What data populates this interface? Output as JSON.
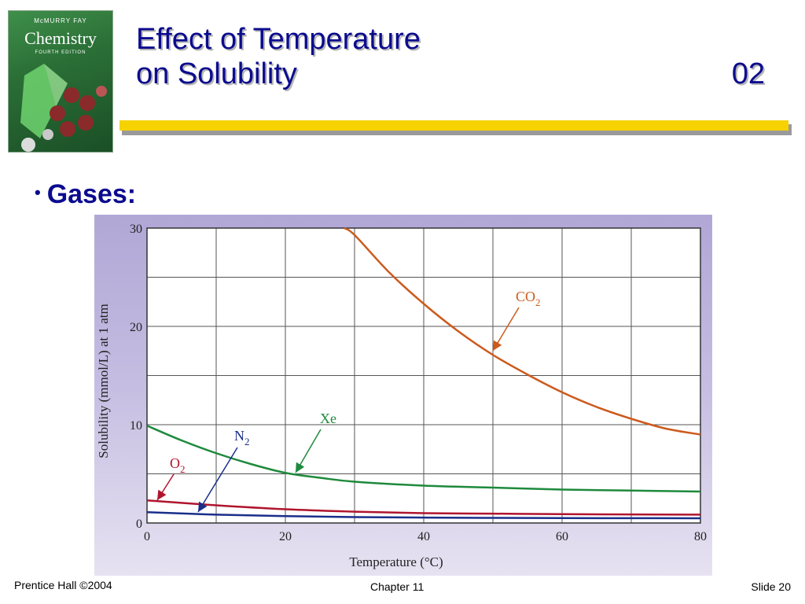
{
  "header": {
    "title_line1": "Effect of Temperature",
    "title_line2": "on Solubility",
    "slide_code": "02",
    "accent_rule": "#f5d200",
    "title_color": "#0b0b8f"
  },
  "book_cover": {
    "publisher": "McMURRY   FAY",
    "brand": "Chemistry",
    "edition": "FOURTH EDITION"
  },
  "bullet": {
    "text": "Gases:"
  },
  "chart_data": {
    "type": "line",
    "xlabel": "Temperature (°C)",
    "ylabel": "Solubility (mmol/L) at 1 atm",
    "xlim": [
      0,
      80
    ],
    "ylim": [
      0,
      30
    ],
    "x_ticks": [
      0,
      20,
      40,
      60,
      80
    ],
    "y_ticks": [
      0,
      10,
      20,
      30
    ],
    "grid": true,
    "series": [
      {
        "name": "CO2",
        "label_main": "CO",
        "label_sub": "2",
        "color": "#cc5a1c",
        "x": [
          28.5,
          30,
          35,
          40,
          45,
          50,
          55,
          60,
          65,
          70,
          75,
          80
        ],
        "y": [
          30,
          29.3,
          25.5,
          22.3,
          19.5,
          17.1,
          15.1,
          13.3,
          11.8,
          10.6,
          9.6,
          9.0
        ]
      },
      {
        "name": "Xe",
        "label_main": "Xe",
        "label_sub": "",
        "color": "#1e8a3c",
        "x": [
          0,
          5,
          10,
          15,
          20,
          25,
          30,
          40,
          50,
          60,
          70,
          80
        ],
        "y": [
          9.9,
          8.4,
          7.1,
          6.0,
          5.1,
          4.6,
          4.2,
          3.8,
          3.6,
          3.4,
          3.3,
          3.2
        ]
      },
      {
        "name": "O2",
        "label_main": "O",
        "label_sub": "2",
        "color": "#b0152e",
        "x": [
          0,
          10,
          20,
          30,
          40,
          50,
          60,
          70,
          80
        ],
        "y": [
          2.3,
          1.8,
          1.4,
          1.15,
          1.0,
          0.95,
          0.9,
          0.87,
          0.85
        ]
      },
      {
        "name": "N2",
        "label_main": "N",
        "label_sub": "2",
        "color": "#1a2f8a",
        "x": [
          0,
          10,
          20,
          30,
          40,
          50,
          60,
          70,
          80
        ],
        "y": [
          1.1,
          0.85,
          0.7,
          0.6,
          0.55,
          0.52,
          0.5,
          0.49,
          0.48
        ]
      }
    ]
  },
  "footer": {
    "left": "Prentice Hall ©2004",
    "center": "Chapter 11",
    "right": "Slide 20"
  }
}
